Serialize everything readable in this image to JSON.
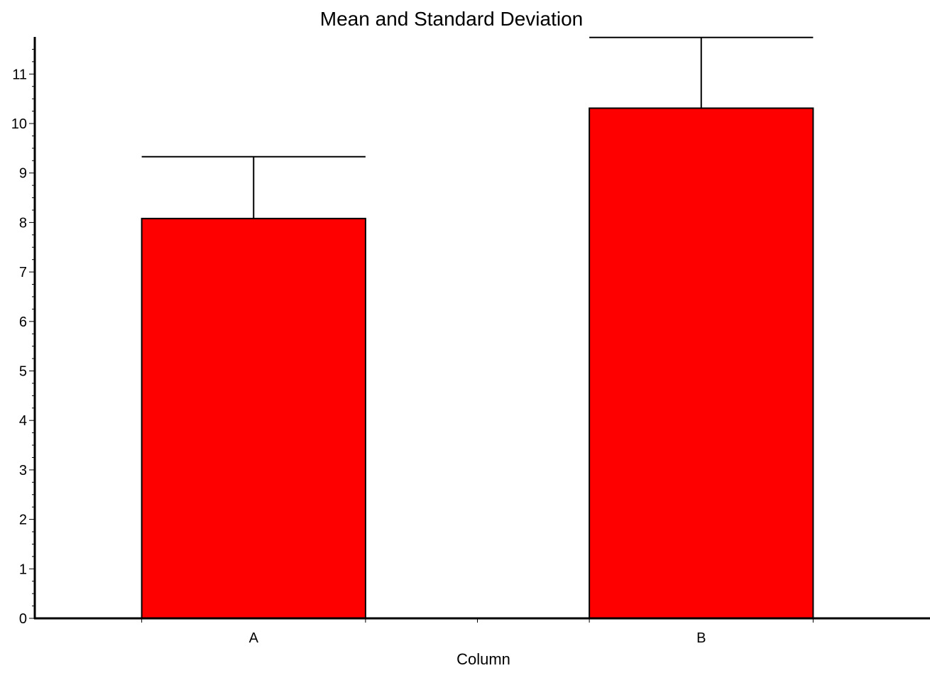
{
  "chart_data": {
    "type": "bar",
    "title": "Mean and Standard Deviation",
    "xlabel": "Column",
    "ylabel": "",
    "categories": [
      "A",
      "B"
    ],
    "values": [
      8.08,
      10.31
    ],
    "error_plus": [
      1.25,
      1.43
    ],
    "ylim": [
      0,
      11.75
    ],
    "y_ticks": [
      0,
      1,
      2,
      3,
      4,
      5,
      6,
      7,
      8,
      9,
      10,
      11
    ],
    "grid": false,
    "legend": "none",
    "bar_color": "#ff0000",
    "edge_color": "#000000"
  }
}
